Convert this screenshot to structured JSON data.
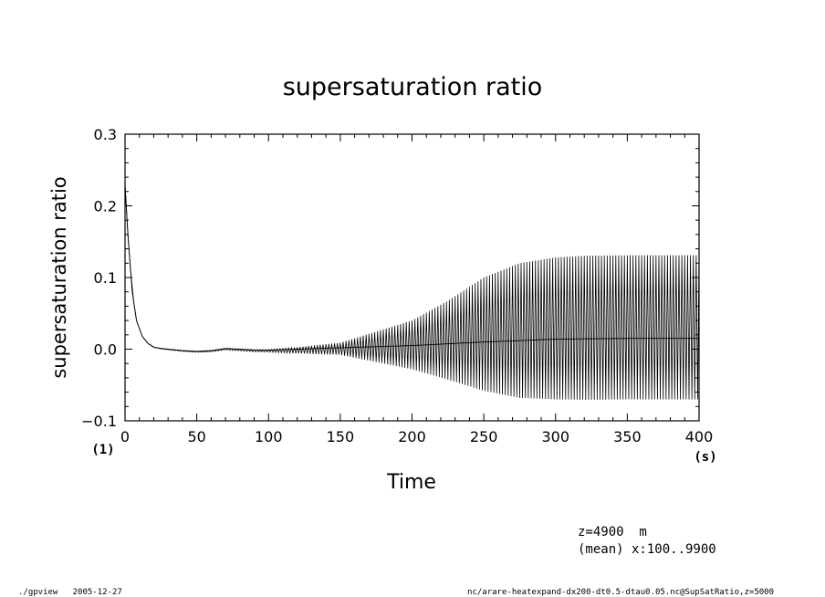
{
  "chart_data": {
    "type": "line",
    "title": "supersaturation ratio",
    "xlabel": "Time",
    "ylabel": "supersaturation ratio",
    "x_unit": "(s)",
    "y_unit": "(1)",
    "xlim": [
      0,
      400
    ],
    "ylim": [
      -0.1,
      0.3
    ],
    "x_ticks": [
      "0",
      "50",
      "100",
      "150",
      "200",
      "250",
      "300",
      "350",
      "400"
    ],
    "y_ticks": [
      "0.3",
      "0.2",
      "0.1",
      "0.0",
      "−0.1"
    ],
    "grid": false,
    "series": [
      {
        "style": "oscillating",
        "period": 2,
        "mean": {
          "x": [
            0,
            2,
            5,
            8,
            12,
            16,
            20,
            25,
            30,
            40,
            50,
            60,
            70,
            80,
            90,
            100,
            120,
            150,
            200,
            250,
            300,
            350,
            400
          ],
          "y": [
            0.23,
            0.16,
            0.08,
            0.04,
            0.018,
            0.008,
            0.003,
            0.001,
            0.0,
            -0.002,
            -0.003,
            -0.002,
            0.001,
            0.0,
            -0.001,
            -0.001,
            0.0,
            0.002,
            0.005,
            0.01,
            0.014,
            0.015,
            0.015
          ]
        },
        "upper": {
          "x": [
            0,
            100,
            150,
            200,
            225,
            250,
            275,
            300,
            320,
            400
          ],
          "y": [
            0.0,
            0.0,
            0.007,
            0.035,
            0.06,
            0.09,
            0.108,
            0.114,
            0.116,
            0.116
          ]
        },
        "lower": {
          "x": [
            0,
            100,
            150,
            200,
            225,
            250,
            275,
            300,
            320,
            400
          ],
          "y": [
            0.0,
            -0.003,
            -0.01,
            -0.033,
            -0.05,
            -0.068,
            -0.08,
            -0.084,
            -0.085,
            -0.085
          ]
        }
      }
    ]
  },
  "annotations": {
    "position_line": "z=4900  m",
    "mean_line": "(mean) x:100..9900"
  },
  "footer": {
    "left": "./gpview   2005-12-27",
    "right": "nc/arare-heatexpand-dx200-dt0.5-dtau0.05.nc@SupSatRatio,z=5000"
  }
}
